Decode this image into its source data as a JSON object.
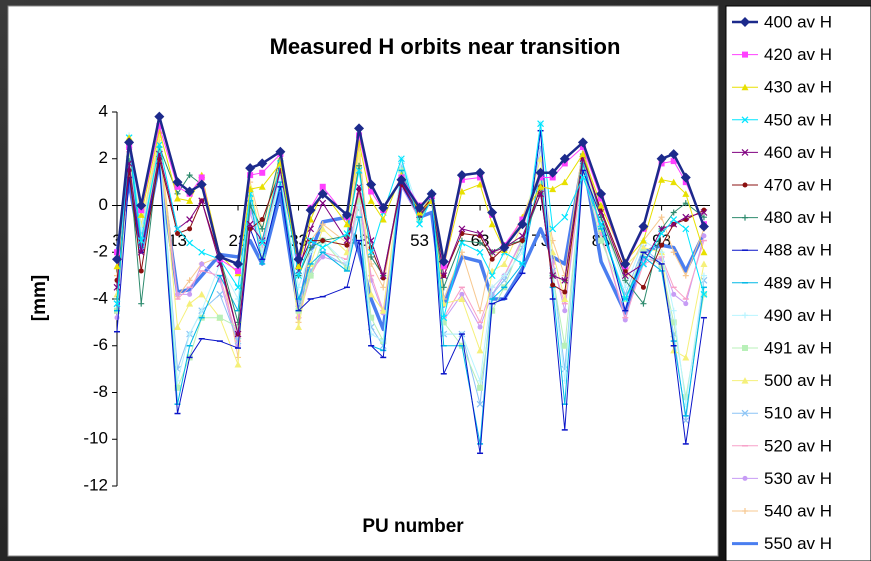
{
  "chart_data": {
    "type": "line",
    "title": "Measured H orbits near transition",
    "xlabel": "PU number",
    "ylabel": "[mm]",
    "x": [
      3,
      5,
      7,
      10,
      13,
      15,
      17,
      20,
      23,
      25,
      27,
      30,
      33,
      35,
      37,
      41,
      43,
      45,
      47,
      50,
      53,
      55,
      57,
      60,
      63,
      65,
      67,
      70,
      73,
      75,
      77,
      80,
      83,
      87,
      90,
      93,
      95,
      97,
      100
    ],
    "xlim": [
      3,
      101
    ],
    "xticks": [
      3,
      13,
      23,
      33,
      43,
      53,
      63,
      73,
      83,
      93
    ],
    "ylim": [
      -12,
      4
    ],
    "yticks": [
      -12,
      -10,
      -8,
      -6,
      -4,
      -2,
      0,
      2,
      4
    ],
    "grid": false,
    "legend": "right",
    "series": [
      {
        "name": "400 av H",
        "color": "#1c2a8c",
        "width": 2.5,
        "marker": "diamond",
        "values": [
          -2.3,
          2.7,
          0,
          3.8,
          1.0,
          0.6,
          0.9,
          -2.2,
          -2.5,
          1.6,
          1.8,
          2.3,
          -2.3,
          -0.2,
          0.5,
          -0.4,
          3.3,
          0.9,
          -0.1,
          1.1,
          -0.1,
          0.5,
          -2.4,
          1.3,
          1.4,
          -0.3,
          -1.8,
          -0.8,
          1.4,
          1.4,
          2.0,
          2.7,
          0.5,
          -2.5,
          -0.9,
          2.0,
          2.2,
          1.2,
          -0.9
        ]
      },
      {
        "name": "420 av H",
        "color": "#ff40ff",
        "width": 1,
        "marker": "square",
        "values": [
          -2.0,
          2.5,
          -0.2,
          3.4,
          0.8,
          0.5,
          1.2,
          -2.3,
          -2.8,
          1.3,
          1.4,
          2.2,
          -2.2,
          -0.1,
          0.8,
          -0.5,
          3.0,
          0.6,
          -0.2,
          1.2,
          0,
          0.4,
          -2.6,
          1.1,
          1.2,
          -0.4,
          -1.7,
          -0.6,
          1.2,
          1.2,
          1.8,
          2.5,
          0.3,
          -2.6,
          -1.0,
          1.8,
          1.9,
          1.0,
          -0.8
        ]
      },
      {
        "name": "430 av H",
        "color": "#e8e000",
        "width": 1,
        "marker": "triangle",
        "values": [
          -2.6,
          2.9,
          -0.4,
          3.2,
          0.3,
          0.2,
          1.3,
          -2.1,
          -2.9,
          0.7,
          0.8,
          1.8,
          -2.6,
          -0.6,
          0.6,
          -0.8,
          2.7,
          0.2,
          -0.6,
          1.3,
          -0.3,
          0.2,
          -2.6,
          0.6,
          0.9,
          -0.8,
          -1.9,
          -0.5,
          0.8,
          0.7,
          1.0,
          2.2,
          0,
          -2.4,
          -1.5,
          1.1,
          1.0,
          0.5,
          -2.0
        ]
      },
      {
        "name": "450 av H",
        "color": "#00e5ff",
        "width": 1,
        "marker": "cross",
        "values": [
          -4.2,
          2.9,
          -1.5,
          2.6,
          -1.0,
          -1.6,
          -2.0,
          -2.3,
          -3.5,
          0.5,
          -1.6,
          1.8,
          -3.0,
          -1.5,
          -1.8,
          -1.2,
          1.5,
          -2.0,
          -0.3,
          2.0,
          -0.8,
          0.3,
          -4.8,
          -1.6,
          -2.0,
          -3.0,
          -2.0,
          -2.5,
          3.5,
          -1.0,
          -0.5,
          1.2,
          -0.8,
          -4.0,
          -2.5,
          -1.2,
          -0.6,
          -1.0,
          -3.8
        ]
      },
      {
        "name": "460 av H",
        "color": "#800080",
        "width": 1,
        "marker": "cross",
        "values": [
          -3.5,
          1.8,
          -2.0,
          2.2,
          -1.0,
          -0.6,
          0.2,
          -2.5,
          -5.5,
          -0.8,
          -1.5,
          1.5,
          -2.8,
          -1.0,
          0.1,
          -1.5,
          0.8,
          -1.5,
          -3.0,
          1.0,
          -0.4,
          0.2,
          -3.0,
          -1.0,
          -1.2,
          -2.0,
          -1.8,
          -1.3,
          0.5,
          -3.0,
          -3.2,
          2.0,
          -0.3,
          -3.0,
          -2.5,
          -1.0,
          -0.8,
          -0.5,
          -0.3
        ]
      },
      {
        "name": "470 av H",
        "color": "#8b1010",
        "width": 1,
        "marker": "circle",
        "values": [
          -3.2,
          1.5,
          -2.8,
          2.0,
          -1.2,
          -1.0,
          0.2,
          -2.3,
          -5.5,
          -1.0,
          -0.6,
          1.5,
          -2.6,
          -1.5,
          -1.5,
          -1.7,
          0.7,
          -1.8,
          -3.1,
          0.9,
          -0.3,
          0.3,
          -3.0,
          -1.2,
          -1.3,
          -2.3,
          -1.8,
          -1.5,
          0.8,
          -3.4,
          -3.7,
          2.0,
          -0.2,
          -2.8,
          -3.5,
          -1.7,
          -0.8,
          -0.6,
          -0.2
        ]
      },
      {
        "name": "480 av H",
        "color": "#2e8b6e",
        "width": 1,
        "marker": "plus",
        "values": [
          -4.0,
          1.9,
          -4.2,
          2.5,
          0.5,
          1.3,
          0.9,
          -2.2,
          -5.0,
          0,
          -1.0,
          2.2,
          -3.0,
          -1.8,
          -1.5,
          -1.3,
          1.7,
          -2.2,
          -3.0,
          1.0,
          -0.5,
          0.2,
          -3.5,
          -1.5,
          -1.6,
          -2.0,
          -1.7,
          -1.5,
          0.5,
          -3.0,
          -3.2,
          2.2,
          -0.5,
          -3.2,
          -4.2,
          -1.0,
          -0.3,
          0.1,
          -0.5
        ]
      },
      {
        "name": "488 av H",
        "color": "#0a14c8",
        "width": 1,
        "marker": "dash",
        "values": [
          -5.4,
          1.2,
          -2.0,
          1.8,
          -8.9,
          -6.5,
          -5.7,
          -5.8,
          -6.1,
          -1.0,
          -2.3,
          0.8,
          -4.5,
          -4.0,
          -3.9,
          -3.5,
          -1.5,
          -6.0,
          -6.5,
          0.9,
          -0.5,
          0.4,
          -7.2,
          -5.5,
          -10.6,
          -4.2,
          -4.0,
          -2.9,
          3.2,
          -4.0,
          -9.6,
          1.5,
          -0.5,
          -4.5,
          -2.0,
          -2.5,
          -6.0,
          -10.2,
          -4.8
        ]
      },
      {
        "name": "489 av H",
        "color": "#00b8e6",
        "width": 1,
        "marker": "dash",
        "values": [
          -4.5,
          2.6,
          -1.8,
          2.0,
          -8.5,
          -6.0,
          -4.8,
          -3.0,
          -4.5,
          0.2,
          -2.5,
          1.0,
          -4.0,
          -2.5,
          -2.0,
          -2.8,
          -0.5,
          -6.0,
          -6.2,
          1.5,
          -0.5,
          0.3,
          -6.0,
          -6.0,
          -10.2,
          -4.0,
          -3.5,
          -2.5,
          1.5,
          -3.5,
          -8.5,
          1.8,
          -1.0,
          -4.0,
          -2.2,
          -2.8,
          -5.8,
          -9.0,
          -3.5
        ]
      },
      {
        "name": "490 av H",
        "color": "#b8f4ff",
        "width": 1,
        "marker": "plus",
        "values": [
          -4.0,
          3.0,
          -1.0,
          2.5,
          -7.5,
          -5.5,
          -4.5,
          -2.5,
          -4.0,
          0.5,
          -2.0,
          1.2,
          -3.5,
          -2.0,
          -1.5,
          -2.5,
          0,
          -5.5,
          -5.8,
          2.0,
          -0.3,
          0.6,
          -5.5,
          -5.5,
          -7.5,
          -3.5,
          -3.0,
          -2.0,
          3.5,
          -3.0,
          -7.5,
          2.0,
          -0.5,
          -3.5,
          -1.5,
          -2.0,
          -4.5,
          -8.5,
          -3.0
        ]
      },
      {
        "name": "491 av H",
        "color": "#b8f0b8",
        "width": 1,
        "marker": "square",
        "values": [
          -4.5,
          2.0,
          -1.5,
          2.3,
          -7.8,
          -6.5,
          -4.8,
          -4.8,
          -5.2,
          0.6,
          -2.2,
          1.8,
          -4.5,
          -3.0,
          -1.5,
          -2.7,
          0.2,
          -4.8,
          -5.8,
          1.5,
          -0.6,
          0.3,
          -5.0,
          -6.0,
          -7.8,
          -4.5,
          -3.5,
          -1.5,
          1.0,
          -3.0,
          -6.0,
          1.5,
          -1.5,
          -4.0,
          -2.0,
          -2.6,
          -5.0,
          -8.2,
          -3.8
        ]
      },
      {
        "name": "500 av H",
        "color": "#f5f07a",
        "width": 1,
        "marker": "triangle",
        "values": [
          -3.8,
          2.2,
          -0.8,
          3.0,
          -5.2,
          -4.2,
          -3.8,
          -4.8,
          -6.8,
          0.8,
          -1.5,
          2.0,
          -5.2,
          -2.5,
          -1.0,
          -2.0,
          2.2,
          -3.8,
          -4.5,
          1.3,
          -0.3,
          0.4,
          -4.2,
          -4.0,
          -6.2,
          -2.8,
          -2.5,
          -0.8,
          2.0,
          -2.0,
          -4.0,
          2.2,
          -1.0,
          -2.6,
          -1.8,
          -2.0,
          -6.2,
          -6.5,
          -2.5
        ]
      },
      {
        "name": "510 av H",
        "color": "#8cc4f5",
        "width": 1,
        "marker": "cross",
        "values": [
          -4.2,
          2.6,
          -1.2,
          2.4,
          -7.0,
          -5.5,
          -4.5,
          -3.8,
          -5.8,
          0.3,
          -2.0,
          1.5,
          -4.2,
          -2.8,
          -2.0,
          -2.6,
          -0.5,
          -5.2,
          -6.0,
          1.7,
          -0.5,
          0.5,
          -5.5,
          -5.5,
          -8.5,
          -3.8,
          -3.2,
          -1.8,
          2.5,
          -2.8,
          -7.0,
          1.8,
          -1.0,
          -3.8,
          -1.8,
          -2.5,
          -5.5,
          -9.2,
          -3.2
        ]
      },
      {
        "name": "520 av H",
        "color": "#f7a0c8",
        "width": 1,
        "marker": "dash",
        "values": [
          -4.6,
          2.3,
          -1.6,
          2.2,
          -4.0,
          -3.5,
          -2.8,
          -3.0,
          -5.8,
          0,
          -1.8,
          1.6,
          -4.8,
          -3.0,
          -2.0,
          -2.3,
          0.5,
          -3.0,
          -4.5,
          1.0,
          -0.6,
          0.2,
          -4.8,
          -3.5,
          -5.0,
          -3.5,
          -3.0,
          -1.5,
          0.5,
          -2.5,
          -4.2,
          1.8,
          -1.2,
          -4.8,
          -2.5,
          -2.2,
          -3.5,
          -4.0,
          -1.5
        ]
      },
      {
        "name": "530 av H",
        "color": "#c79cf5",
        "width": 1,
        "marker": "circle",
        "values": [
          -4.8,
          2.1,
          -1.8,
          2.0,
          -3.8,
          -3.8,
          -2.5,
          -3.2,
          -6.0,
          -0.3,
          -2.0,
          1.5,
          -4.8,
          -2.8,
          -2.2,
          -2.5,
          0.2,
          -3.2,
          -4.6,
          0.8,
          -0.6,
          0.2,
          -4.9,
          -3.8,
          -5.2,
          -3.8,
          -3.0,
          -1.4,
          0.5,
          -2.4,
          -4.5,
          1.8,
          -1.2,
          -4.9,
          -2.3,
          -2.3,
          -3.8,
          -4.2,
          -1.3
        ]
      },
      {
        "name": "540 av H",
        "color": "#f7c890",
        "width": 1,
        "marker": "plus",
        "values": [
          -3.0,
          2.4,
          -1.0,
          2.8,
          -3.9,
          -3.2,
          -2.5,
          -2.2,
          -6.5,
          1.0,
          -1.0,
          2.0,
          -5.0,
          -1.5,
          -0.8,
          -1.6,
          2.5,
          -2.5,
          -3.5,
          1.4,
          -0.2,
          0.4,
          -4.0,
          -2.0,
          -4.5,
          -2.0,
          -2.0,
          -0.5,
          1.5,
          -1.5,
          -3.0,
          2.5,
          -0.5,
          -3.0,
          -1.5,
          -0.5,
          -2.0,
          -3.0,
          -1.0
        ]
      },
      {
        "name": "550 av H",
        "color": "#4a7ef0",
        "width": 3.5,
        "marker": "none",
        "values": [
          -2.0,
          1.0,
          -2.0,
          1.8,
          -3.7,
          -3.6,
          -3.0,
          -2.1,
          -2.2,
          -1.5,
          -2.5,
          0.5,
          -4.5,
          -2.0,
          -0.7,
          -0.5,
          -2.0,
          -4.0,
          -5.3,
          1.0,
          -0.5,
          -0.3,
          -4.3,
          -2.2,
          -2.4,
          -4.0,
          -4.0,
          -2.7,
          -1.0,
          -2.2,
          -2.5,
          2.0,
          -2.4,
          -4.6,
          -2.0,
          -1.7,
          -1.8,
          -2.8,
          -1.2
        ]
      }
    ]
  }
}
